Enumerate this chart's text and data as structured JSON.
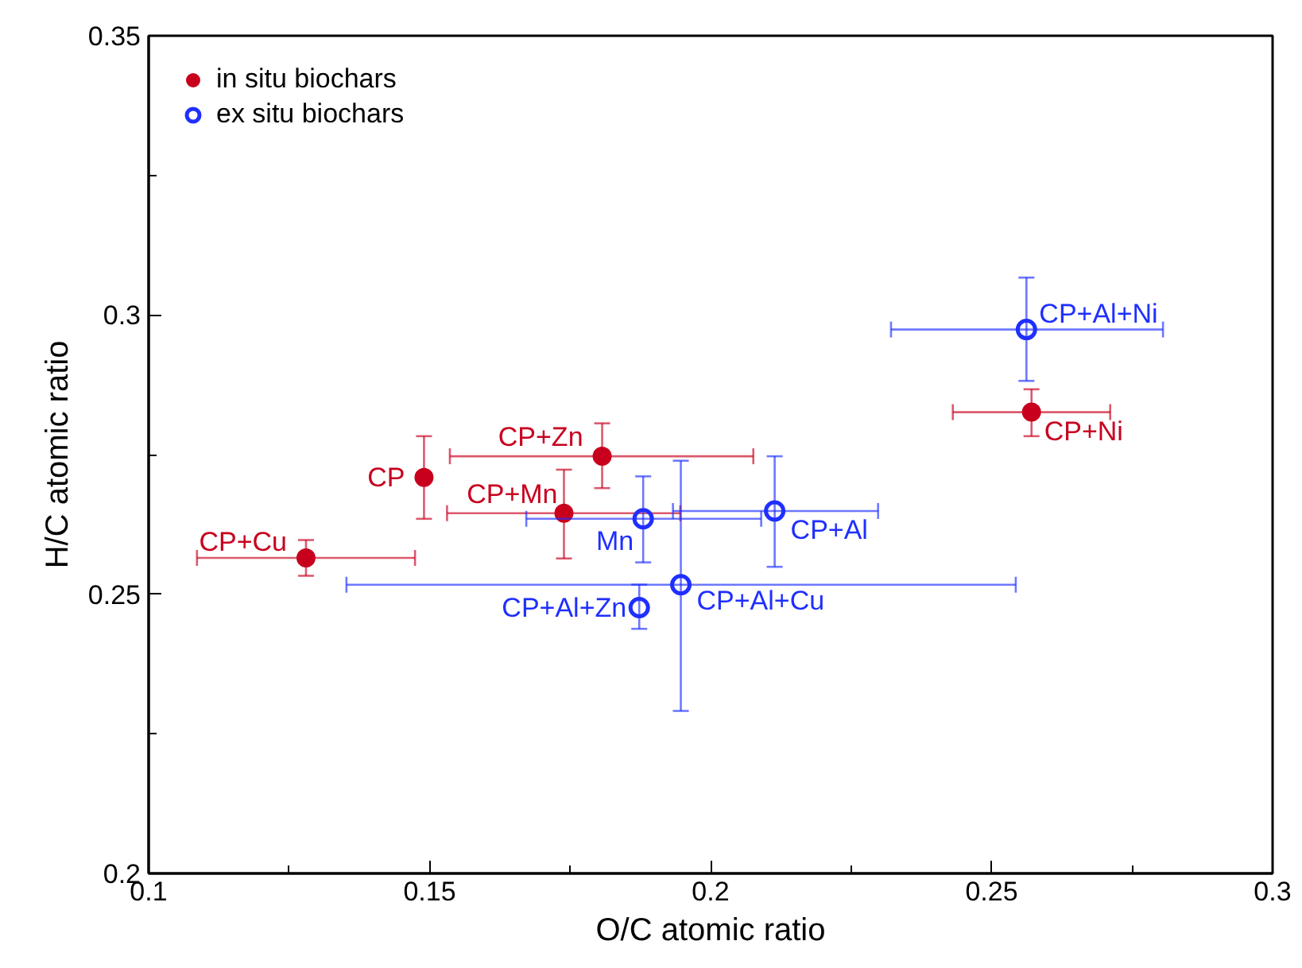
{
  "chart_data": {
    "type": "scatter",
    "xlabel": "O/C atomic ratio",
    "ylabel": "H/C atomic ratio",
    "xlim": [
      0.1,
      0.3
    ],
    "ylim": [
      0.2,
      0.35
    ],
    "xticks": [
      0.1,
      0.15,
      0.2,
      0.25,
      0.3
    ],
    "yticks": [
      0.2,
      0.25,
      0.3,
      0.35
    ],
    "grid": false,
    "legend": "top left",
    "series": [
      {
        "name": "in situ biochars",
        "color": "#c8001e",
        "marker": "circle",
        "x": [
          0.128,
          0.149,
          0.1807,
          0.1739,
          0.2571
        ],
        "values": [
          0.2565,
          0.2709,
          0.2747,
          0.2645,
          0.2826
        ],
        "xerrors": [
          [
            0.1086,
            0.1474
          ],
          null,
          [
            0.1536,
            0.2076
          ],
          [
            0.1531,
            0.1946
          ],
          [
            0.2431,
            0.2711
          ]
        ],
        "errors": [
          [
            0.2533,
            0.2597
          ],
          [
            0.2635,
            0.2783
          ],
          [
            0.269,
            0.2806
          ],
          [
            0.2564,
            0.2723
          ],
          [
            0.2783,
            0.2867
          ]
        ]
      },
      {
        "name": "ex situ biochars",
        "color": "#1f2fff",
        "marker": "open_circle",
        "x": [
          0.188,
          0.1873,
          0.1947,
          0.2114,
          0.2562
        ],
        "values": [
          0.2635,
          0.2476,
          0.2517,
          0.2649,
          0.2974
        ],
        "xerrors": [
          [
            0.1672,
            0.209
          ],
          null,
          [
            0.1352,
            0.2543
          ],
          [
            0.1933,
            0.2298
          ],
          [
            0.2321,
            0.2805
          ]
        ],
        "errors": [
          [
            0.2557,
            0.2711
          ],
          [
            0.2438,
            0.2517
          ],
          [
            0.2291,
            0.2739
          ],
          [
            0.2549,
            0.2747
          ],
          [
            0.2882,
            0.3067
          ]
        ]
      }
    ],
    "annotations": [
      {
        "text": "CP+Cu",
        "x": 0.128,
        "y": 0.2565
      },
      {
        "text": "CP",
        "x": 0.149,
        "y": 0.2709
      },
      {
        "text": "CP+Zn",
        "x": 0.1807,
        "y": 0.2747
      },
      {
        "text": "CP+Mn",
        "x": 0.1739,
        "y": 0.2645
      },
      {
        "text": "CP+Ni",
        "x": 0.2571,
        "y": 0.2826
      },
      {
        "text": "Mn",
        "x": 0.188,
        "y": 0.2635
      },
      {
        "text": "CP+Al+Zn",
        "x": 0.1873,
        "y": 0.2476
      },
      {
        "text": "CP+Al+Cu",
        "x": 0.1947,
        "y": 0.2517
      },
      {
        "text": "CP+Al",
        "x": 0.2114,
        "y": 0.2649
      },
      {
        "text": "CP+Al+Ni",
        "x": 0.2562,
        "y": 0.2974
      }
    ]
  }
}
